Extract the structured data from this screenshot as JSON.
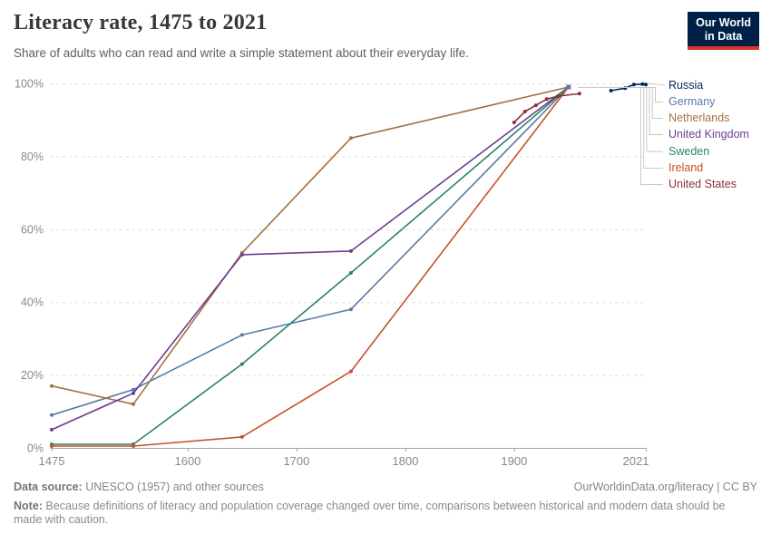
{
  "header": {
    "title": "Literacy rate, 1475 to 2021",
    "subtitle": "Share of adults who can read and write a simple statement about their everyday life."
  },
  "logo": {
    "line1": "Our World",
    "line2": "in Data",
    "bg_color": "#002147",
    "accent_color": "#dc352c"
  },
  "chart_data": {
    "type": "line",
    "title": "Literacy rate, 1475 to 2021",
    "subtitle": "Share of adults who can read and write a simple statement about their everyday life.",
    "xlabel": "",
    "ylabel": "",
    "xlim": [
      1475,
      2021
    ],
    "ylim": [
      0,
      100
    ],
    "x_ticks": [
      1475,
      1600,
      1700,
      1800,
      1900,
      2021
    ],
    "y_ticks": [
      0,
      20,
      40,
      60,
      80,
      100
    ],
    "y_tick_suffix": "%",
    "grid": "horizontal dashed",
    "legend_position": "right",
    "series": [
      {
        "name": "Russia",
        "color": "#00295B",
        "points": [
          [
            1989,
            98
          ],
          [
            2002,
            98.7
          ],
          [
            2010,
            99.7
          ],
          [
            2018,
            99.8
          ],
          [
            2021,
            99.7
          ]
        ]
      },
      {
        "name": "Germany",
        "color": "#577CA8",
        "points": [
          [
            1475,
            9
          ],
          [
            1550,
            16
          ],
          [
            1650,
            31
          ],
          [
            1750,
            38
          ],
          [
            1950,
            99
          ]
        ]
      },
      {
        "name": "Netherlands",
        "color": "#A5713F",
        "points": [
          [
            1475,
            17
          ],
          [
            1550,
            12
          ],
          [
            1650,
            53.5
          ],
          [
            1750,
            85
          ],
          [
            1950,
            99
          ]
        ]
      },
      {
        "name": "United Kingdom",
        "color": "#6D3E91",
        "points": [
          [
            1475,
            5
          ],
          [
            1550,
            15
          ],
          [
            1650,
            53
          ],
          [
            1750,
            54
          ],
          [
            1950,
            99
          ]
        ]
      },
      {
        "name": "Sweden",
        "color": "#2C8465",
        "points": [
          [
            1475,
            1
          ],
          [
            1550,
            1
          ],
          [
            1650,
            23
          ],
          [
            1750,
            48
          ],
          [
            1950,
            99
          ]
        ]
      },
      {
        "name": "Ireland",
        "color": "#C4522B",
        "points": [
          [
            1475,
            0.5
          ],
          [
            1550,
            0.5
          ],
          [
            1650,
            3
          ],
          [
            1750,
            21
          ],
          [
            1950,
            99
          ]
        ]
      },
      {
        "name": "United States",
        "color": "#8B3039",
        "points": [
          [
            1900,
            89.3
          ],
          [
            1910,
            92.3
          ],
          [
            1920,
            94
          ],
          [
            1930,
            95.7
          ],
          [
            1940,
            96.5
          ],
          [
            1960,
            97.2
          ]
        ]
      }
    ]
  },
  "footer": {
    "datasource_label": "Data source:",
    "datasource_text": " UNESCO (1957) and other sources",
    "link_text": "OurWorldinData.org/literacy | CC BY",
    "note_label": "Note:",
    "note_text": " Because definitions of literacy and population coverage changed over time, comparisons between historical and modern data should be made with caution."
  }
}
